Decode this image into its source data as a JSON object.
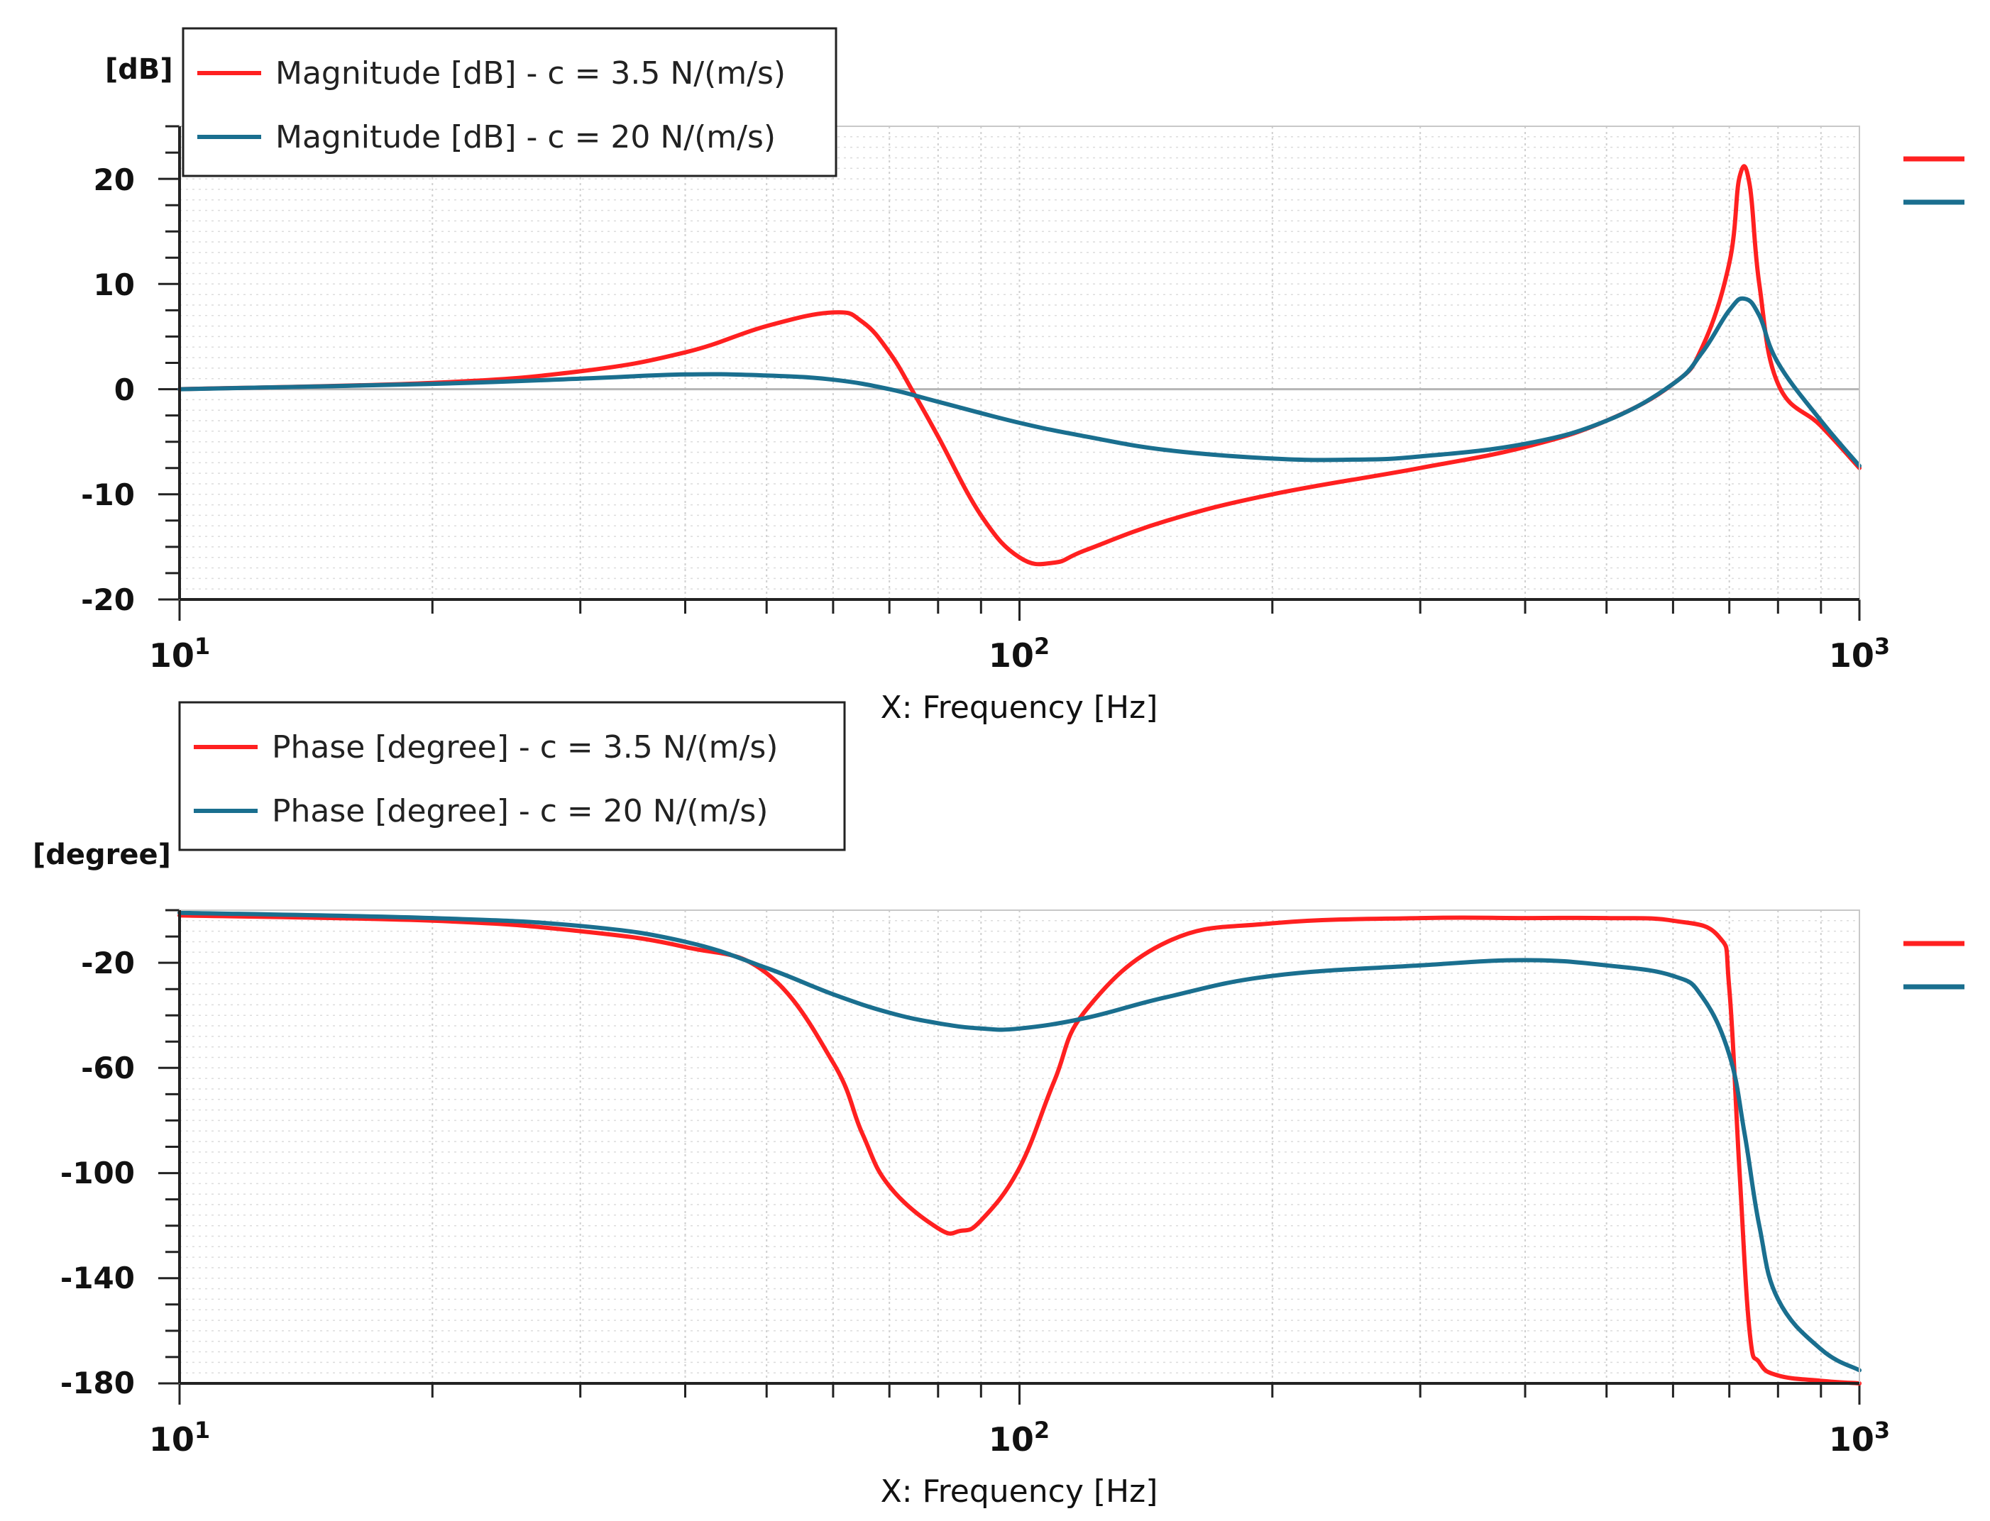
{
  "chart_data": [
    {
      "type": "line",
      "id": "magnitude",
      "title": "",
      "ylabel": "[dB]",
      "xlabel": "X: Frequency [Hz]",
      "xscale": "log",
      "xlim": [
        10,
        1000
      ],
      "ylim": [
        -20,
        25
      ],
      "yticks": [
        20,
        10,
        0,
        -10,
        -20
      ],
      "ytick_labels": [
        "20",
        "10",
        "0",
        "-10",
        "-20"
      ],
      "xticks": [
        10,
        100,
        1000
      ],
      "xtick_labels": [
        {
          "base": "10",
          "exp": "1"
        },
        {
          "base": "10",
          "exp": "2"
        },
        {
          "base": "10",
          "exp": "3"
        }
      ],
      "grid": true,
      "reference_line": 0,
      "legend_position": "top-left",
      "series": [
        {
          "name": "Magnitude [dB] - c = 3.5 N/(m/s)",
          "color": "#ff2020",
          "x": [
            10,
            20,
            30,
            40,
            50,
            60,
            65,
            70,
            75,
            80,
            90,
            100,
            110,
            120,
            150,
            200,
            300,
            400,
            500,
            600,
            650,
            700,
            720,
            740,
            760,
            800,
            900,
            1000
          ],
          "y": [
            0,
            0.6,
            1.7,
            3.5,
            6.0,
            7.3,
            6.4,
            3.5,
            -0.5,
            -4.5,
            -12.0,
            -16.0,
            -16.5,
            -15.3,
            -12.5,
            -10.0,
            -7.5,
            -5.5,
            -3.0,
            0.5,
            4.0,
            12.0,
            20.2,
            19.5,
            10.0,
            0.5,
            -3.5,
            -7.5
          ]
        },
        {
          "name": "Magnitude [dB] - c = 20 N/(m/s)",
          "color": "#1a6f8f",
          "x": [
            10,
            20,
            30,
            40,
            50,
            60,
            70,
            80,
            100,
            120,
            150,
            200,
            250,
            300,
            400,
            500,
            600,
            650,
            700,
            730,
            760,
            800,
            900,
            1000
          ],
          "y": [
            0,
            0.5,
            1.0,
            1.4,
            1.3,
            0.9,
            0,
            -1.2,
            -3.2,
            -4.5,
            -5.8,
            -6.6,
            -6.7,
            -6.4,
            -5.2,
            -3.0,
            0.5,
            3.5,
            7.5,
            8.6,
            7.0,
            2.5,
            -3.0,
            -7.3
          ]
        }
      ]
    },
    {
      "type": "line",
      "id": "phase",
      "title": "",
      "ylabel": "[degree]",
      "xlabel": "X: Frequency [Hz]",
      "xscale": "log",
      "xlim": [
        10,
        1000
      ],
      "ylim": [
        -180,
        0
      ],
      "yticks": [
        -20,
        -60,
        -100,
        -140,
        -180
      ],
      "ytick_labels": [
        "-20",
        "-60",
        "-100",
        "-140",
        "-180"
      ],
      "xticks": [
        10,
        100,
        1000
      ],
      "xtick_labels": [
        {
          "base": "10",
          "exp": "1"
        },
        {
          "base": "10",
          "exp": "2"
        },
        {
          "base": "10",
          "exp": "3"
        }
      ],
      "grid": true,
      "legend_position": "top-left",
      "series": [
        {
          "name": "Phase [degree] - c = 3.5 N/(m/s)",
          "color": "#ff2020",
          "x": [
            10,
            20,
            30,
            40,
            50,
            60,
            65,
            70,
            80,
            85,
            90,
            100,
            110,
            120,
            150,
            200,
            300,
            400,
            500,
            600,
            680,
            700,
            720,
            740,
            760,
            800,
            900,
            1000
          ],
          "y": [
            -2,
            -4,
            -8,
            -14,
            -24,
            -58,
            -85,
            -105,
            -121,
            -122,
            -118,
            -98,
            -65,
            -38,
            -12,
            -5,
            -3,
            -3,
            -3,
            -4,
            -10,
            -30,
            -100,
            -160,
            -172,
            -177,
            -179,
            -180
          ]
        },
        {
          "name": "Phase [degree] - c = 20 N/(m/s)",
          "color": "#1a6f8f",
          "x": [
            10,
            20,
            30,
            40,
            50,
            60,
            70,
            80,
            90,
            100,
            120,
            150,
            200,
            300,
            400,
            500,
            600,
            650,
            700,
            730,
            760,
            800,
            900,
            1000
          ],
          "y": [
            -1,
            -3,
            -6,
            -12,
            -22,
            -32,
            -39,
            -43,
            -45,
            -45,
            -41,
            -33,
            -25,
            -21,
            -19,
            -21,
            -25,
            -33,
            -55,
            -85,
            -120,
            -148,
            -167,
            -175
          ]
        }
      ]
    }
  ]
}
